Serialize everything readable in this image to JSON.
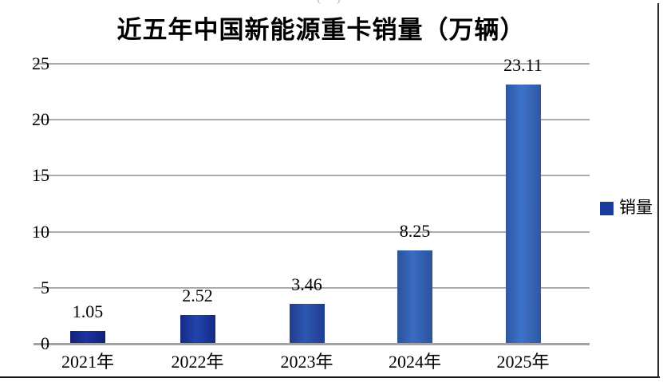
{
  "chart_data": {
    "type": "bar",
    "title": "近五年中国新能源重卡销量（万辆）",
    "categories": [
      "2021年",
      "2022年",
      "2023年",
      "2024年",
      "2025年"
    ],
    "series": [
      {
        "name": "销量",
        "values": [
          1.05,
          2.52,
          3.46,
          8.25,
          23.11
        ]
      }
    ],
    "data_labels": [
      "1.05",
      "2.52",
      "3.46",
      "8.25",
      "23.11"
    ],
    "xlabel": "",
    "ylabel": "",
    "y_ticks": [
      0,
      5,
      10,
      15,
      20,
      25
    ],
    "ylim": [
      0,
      25
    ],
    "grid": true,
    "legend_position": "right",
    "bar_colors": [
      {
        "edge": "#101f78",
        "mid": "#1d33a2"
      },
      {
        "edge": "#152a84",
        "mid": "#2244ad"
      },
      {
        "edge": "#1f3c92",
        "mid": "#2d57b2"
      },
      {
        "edge": "#2b529e",
        "mid": "#3a6cc1"
      },
      {
        "edge": "#2e57a3",
        "mid": "#3f73c9"
      }
    ],
    "gridline_color": "#ababab",
    "axisline_color": "#a2a2a2",
    "text_color": "#000000"
  },
  "legend": {
    "label": "销量",
    "swatch_color": "#1b3a9e"
  },
  "remnants": {
    "top": "( )",
    "left": "|"
  }
}
